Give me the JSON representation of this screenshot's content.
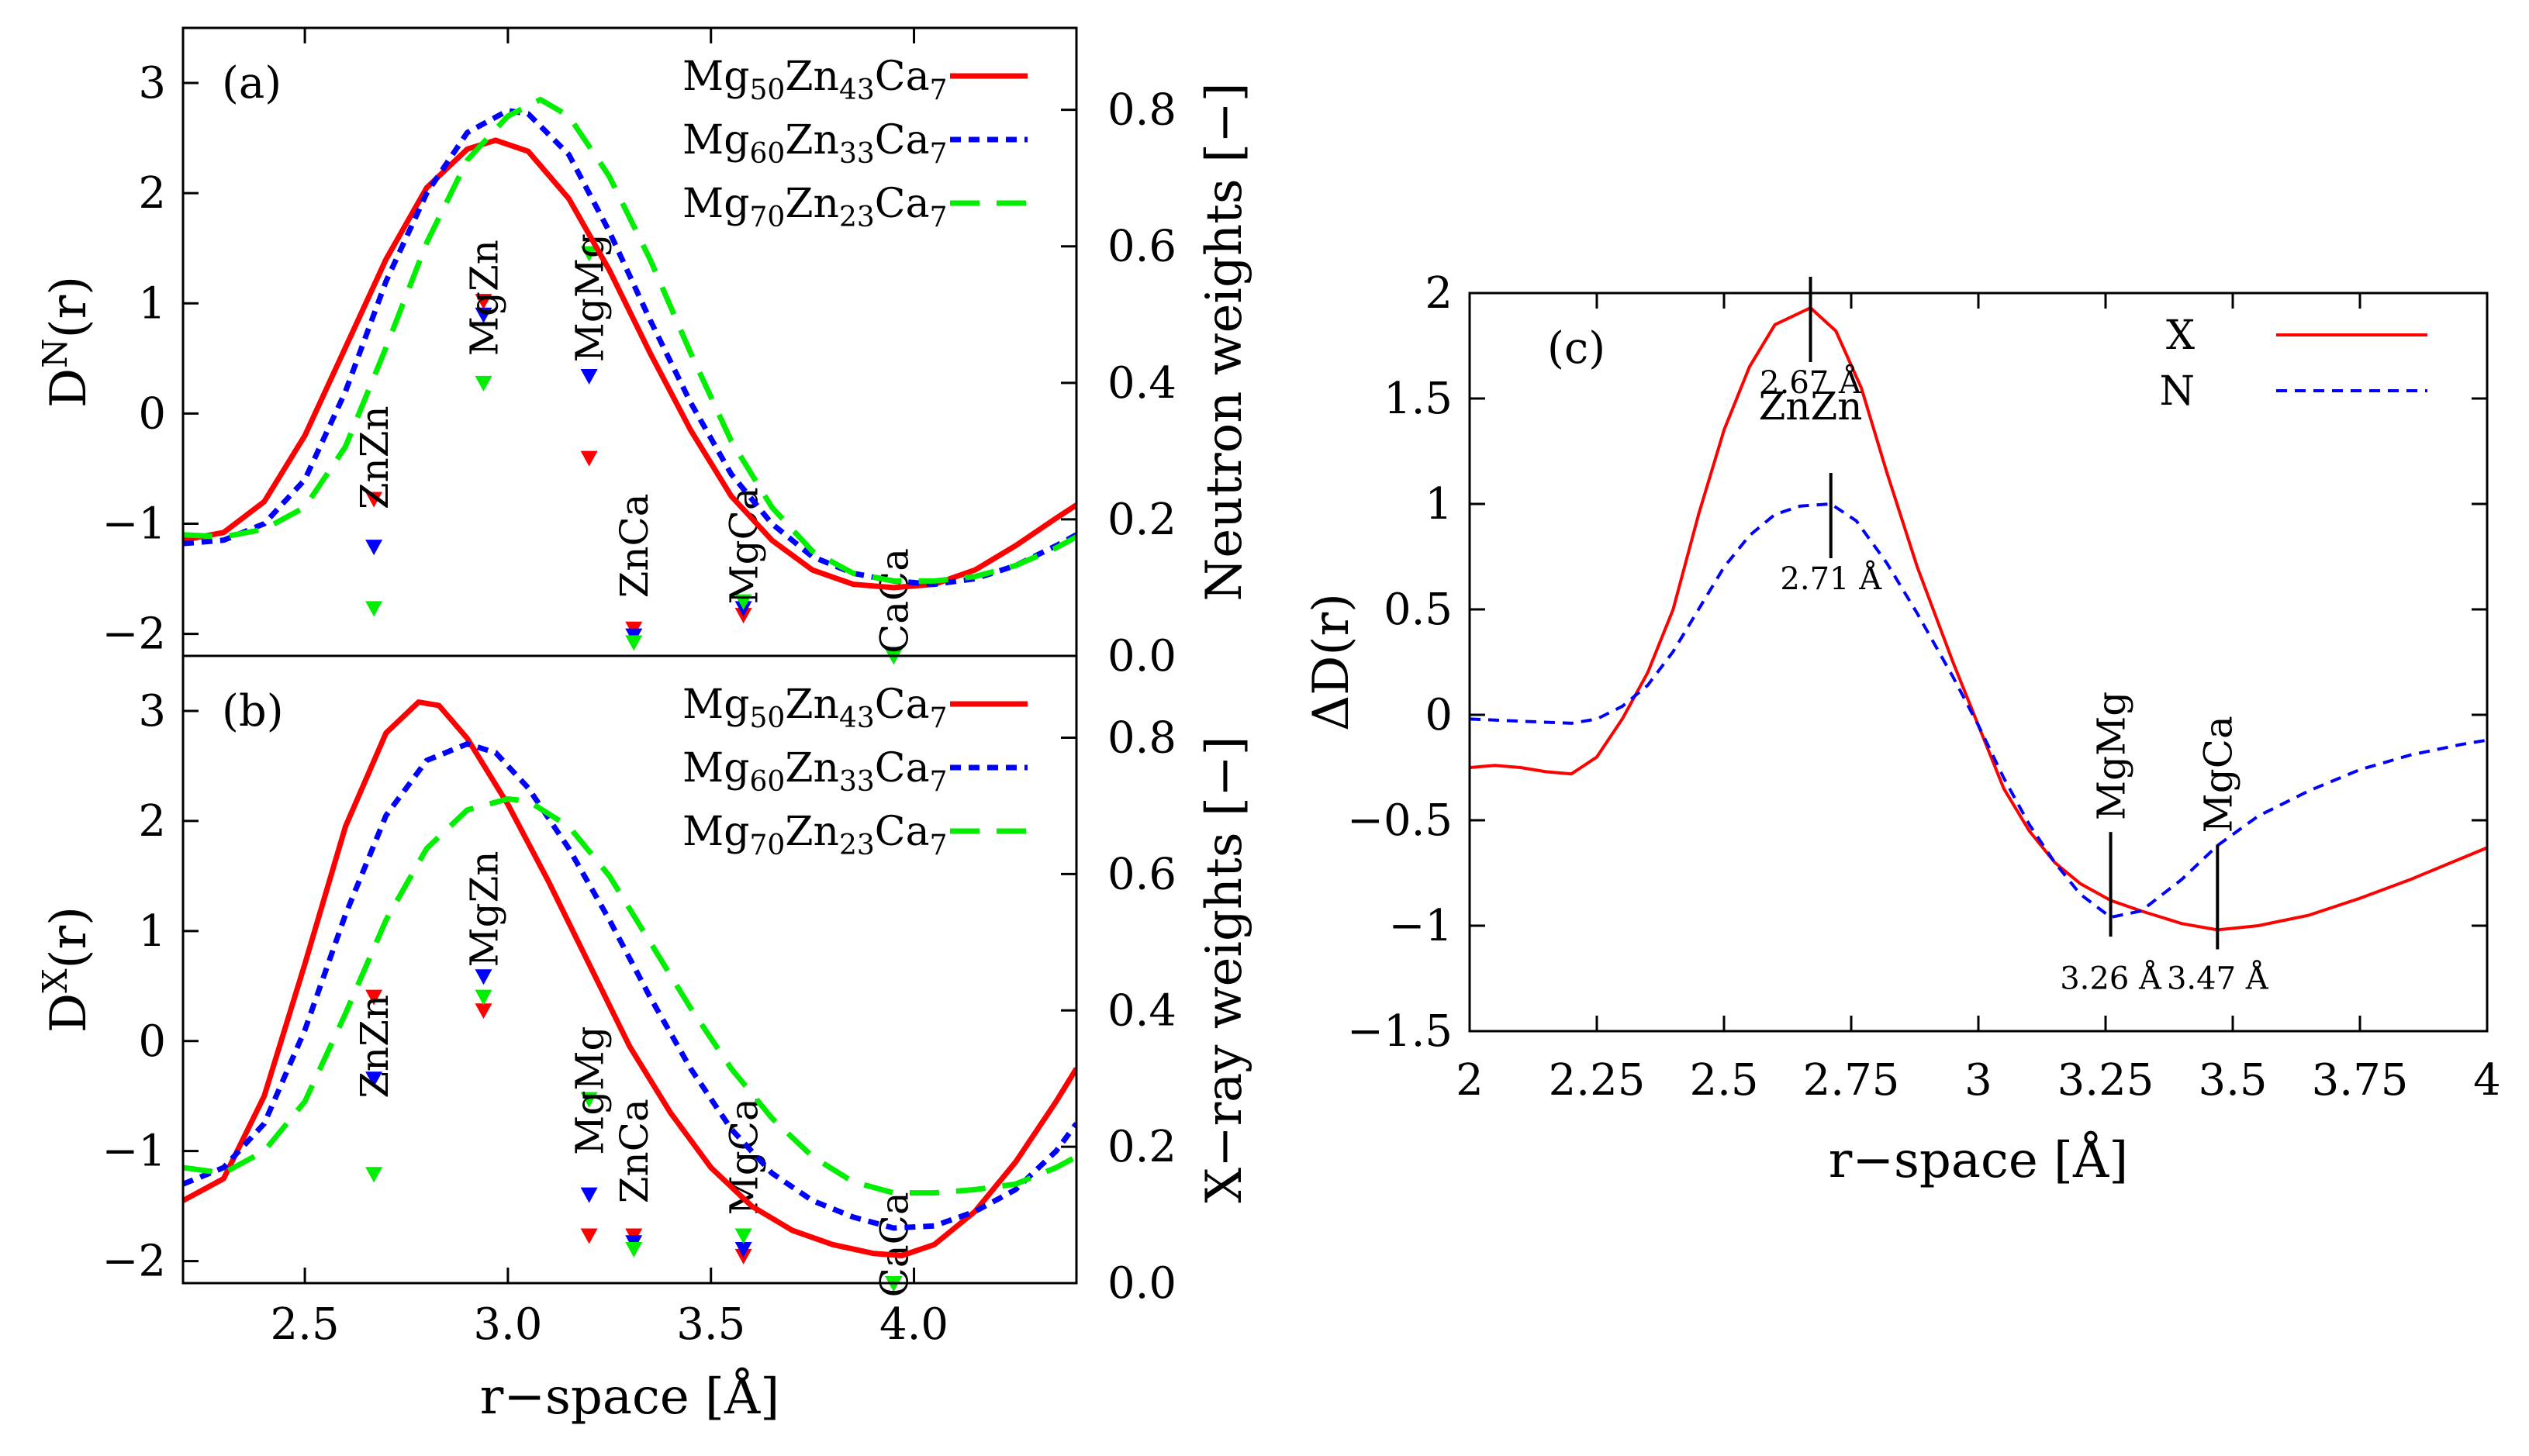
{
  "colors": {
    "red": "#ff0000",
    "blue": "#0000ff",
    "green": "#00ee00",
    "frame": "#000000"
  },
  "chart_data": [
    {
      "id": "a",
      "type": "line",
      "panel_label": "(a)",
      "ylabel": "D^N(r)",
      "ylabel_main": "D",
      "ylabel_sup": "N",
      "ylabel_tail": "(r)",
      "y2label": "Neutron weights [−]",
      "xlim": [
        2.2,
        4.4
      ],
      "ylim": [
        -2.2,
        3.5
      ],
      "y2lim": [
        0.0,
        0.92
      ],
      "yticks": [
        3,
        2,
        1,
        0,
        -1,
        -2
      ],
      "ytick_labels": [
        "3",
        "2",
        "1",
        "0",
        "−1",
        "−2"
      ],
      "y2ticks": [
        0.8,
        0.6,
        0.4,
        0.2,
        0.0
      ],
      "y2tick_labels": [
        "0.8",
        "0.6",
        "0.4",
        "0.2",
        "0.0"
      ],
      "legend": [
        {
          "label": "Mg50Zn43Ca7",
          "parts": [
            [
              "Mg",
              ""
            ],
            [
              "50",
              "sub"
            ],
            [
              "Zn",
              ""
            ],
            [
              "43",
              "sub"
            ],
            [
              "Ca",
              ""
            ],
            [
              "7",
              "sub"
            ]
          ],
          "color": "#ff0000",
          "dash": "solid"
        },
        {
          "label": "Mg60Zn33Ca7",
          "parts": [
            [
              "Mg",
              ""
            ],
            [
              "60",
              "sub"
            ],
            [
              "Zn",
              ""
            ],
            [
              "33",
              "sub"
            ],
            [
              "Ca",
              ""
            ],
            [
              "7",
              "sub"
            ]
          ],
          "color": "#0000ff",
          "dash": "dotted"
        },
        {
          "label": "Mg70Zn23Ca7",
          "parts": [
            [
              "Mg",
              ""
            ],
            [
              "70",
              "sub"
            ],
            [
              "Zn",
              ""
            ],
            [
              "23",
              "sub"
            ],
            [
              "Ca",
              ""
            ],
            [
              "7",
              "sub"
            ]
          ],
          "color": "#00ee00",
          "dash": "dashed"
        }
      ],
      "series": [
        {
          "name": "Mg50Zn43Ca7",
          "color": "#ff0000",
          "dash": "solid",
          "x": [
            2.2,
            2.3,
            2.4,
            2.5,
            2.6,
            2.7,
            2.8,
            2.9,
            2.97,
            3.05,
            3.15,
            3.25,
            3.35,
            3.45,
            3.55,
            3.65,
            3.75,
            3.85,
            3.95,
            4.05,
            4.15,
            4.25,
            4.35,
            4.4
          ],
          "values": [
            -1.15,
            -1.08,
            -0.8,
            -0.2,
            0.6,
            1.4,
            2.05,
            2.4,
            2.48,
            2.38,
            1.95,
            1.3,
            0.55,
            -0.15,
            -0.75,
            -1.15,
            -1.42,
            -1.55,
            -1.58,
            -1.55,
            -1.42,
            -1.2,
            -0.95,
            -0.83
          ]
        },
        {
          "name": "Mg60Zn33Ca7",
          "color": "#0000ff",
          "dash": "dotted",
          "x": [
            2.2,
            2.3,
            2.4,
            2.5,
            2.6,
            2.7,
            2.8,
            2.9,
            3.0,
            3.05,
            3.15,
            3.25,
            3.35,
            3.45,
            3.55,
            3.65,
            3.75,
            3.85,
            3.95,
            4.05,
            4.15,
            4.25,
            4.35,
            4.4
          ],
          "values": [
            -1.18,
            -1.15,
            -1.0,
            -0.6,
            0.2,
            1.2,
            2.0,
            2.55,
            2.75,
            2.72,
            2.35,
            1.65,
            0.85,
            0.1,
            -0.55,
            -1.0,
            -1.3,
            -1.45,
            -1.52,
            -1.55,
            -1.5,
            -1.38,
            -1.2,
            -1.1
          ]
        },
        {
          "name": "Mg70Zn23Ca7",
          "color": "#00ee00",
          "dash": "dashed",
          "x": [
            2.2,
            2.3,
            2.4,
            2.5,
            2.6,
            2.7,
            2.8,
            2.9,
            3.0,
            3.08,
            3.15,
            3.25,
            3.35,
            3.45,
            3.55,
            3.65,
            3.75,
            3.85,
            3.95,
            4.05,
            4.15,
            4.25,
            4.35,
            4.4
          ],
          "values": [
            -1.1,
            -1.12,
            -1.05,
            -0.85,
            -0.3,
            0.6,
            1.55,
            2.3,
            2.7,
            2.85,
            2.7,
            2.15,
            1.4,
            0.55,
            -0.25,
            -0.85,
            -1.25,
            -1.45,
            -1.52,
            -1.52,
            -1.48,
            -1.38,
            -1.22,
            -1.12
          ]
        }
      ],
      "weights": {
        "pairs": [
          "ZnZn",
          "MgZn",
          "MgMg",
          "ZnCa",
          "MgCa",
          "CaCa"
        ],
        "r": [
          2.67,
          2.94,
          3.2,
          3.31,
          3.58,
          3.95
        ],
        "label_y": [
          -0.4,
          1.05,
          1.05,
          -1.2,
          -1.2,
          -1.7
        ],
        "red": [
          0.23,
          0.52,
          0.29,
          0.04,
          0.06,
          0.0
        ],
        "blue": [
          0.16,
          0.5,
          0.41,
          0.03,
          0.07,
          0.0
        ],
        "green": [
          0.07,
          0.4,
          0.59,
          0.02,
          0.08,
          0.0
        ]
      }
    },
    {
      "id": "b",
      "type": "line",
      "panel_label": "(b)",
      "ylabel": "D^X(r)",
      "ylabel_main": "D",
      "ylabel_sup": "X",
      "ylabel_tail": "(r)",
      "y2label": "X−ray weights [−]",
      "xlabel": "r−space [Å]",
      "xlim": [
        2.2,
        4.4
      ],
      "ylim": [
        -2.2,
        3.5
      ],
      "y2lim": [
        0.0,
        0.92
      ],
      "xticks": [
        2.5,
        3.0,
        3.5,
        4.0
      ],
      "xtick_labels": [
        "2.5",
        "3.0",
        "3.5",
        "4.0"
      ],
      "yticks": [
        3,
        2,
        1,
        0,
        -1,
        -2
      ],
      "ytick_labels": [
        "3",
        "2",
        "1",
        "0",
        "−1",
        "−2"
      ],
      "y2ticks": [
        0.8,
        0.6,
        0.4,
        0.2,
        0.0
      ],
      "y2tick_labels": [
        "0.8",
        "0.6",
        "0.4",
        "0.2",
        "0.0"
      ],
      "legend": [
        {
          "label": "Mg50Zn43Ca7",
          "parts": [
            [
              "Mg",
              ""
            ],
            [
              "50",
              "sub"
            ],
            [
              "Zn",
              ""
            ],
            [
              "43",
              "sub"
            ],
            [
              "Ca",
              ""
            ],
            [
              "7",
              "sub"
            ]
          ],
          "color": "#ff0000",
          "dash": "solid"
        },
        {
          "label": "Mg60Zn33Ca7",
          "parts": [
            [
              "Mg",
              ""
            ],
            [
              "60",
              "sub"
            ],
            [
              "Zn",
              ""
            ],
            [
              "33",
              "sub"
            ],
            [
              "Ca",
              ""
            ],
            [
              "7",
              "sub"
            ]
          ],
          "color": "#0000ff",
          "dash": "dotted"
        },
        {
          "label": "Mg70Zn23Ca7",
          "parts": [
            [
              "Mg",
              ""
            ],
            [
              "70",
              "sub"
            ],
            [
              "Zn",
              ""
            ],
            [
              "23",
              "sub"
            ],
            [
              "Ca",
              ""
            ],
            [
              "7",
              "sub"
            ]
          ],
          "color": "#00ee00",
          "dash": "dashed"
        }
      ],
      "series": [
        {
          "name": "Mg50Zn43Ca7",
          "color": "#ff0000",
          "dash": "solid",
          "x": [
            2.2,
            2.3,
            2.4,
            2.5,
            2.6,
            2.7,
            2.78,
            2.83,
            2.9,
            3.0,
            3.1,
            3.2,
            3.3,
            3.4,
            3.5,
            3.6,
            3.7,
            3.8,
            3.9,
            3.97,
            4.05,
            4.15,
            4.25,
            4.35,
            4.4
          ],
          "values": [
            -1.45,
            -1.25,
            -0.5,
            0.7,
            1.95,
            2.8,
            3.08,
            3.05,
            2.75,
            2.15,
            1.45,
            0.7,
            -0.05,
            -0.65,
            -1.15,
            -1.5,
            -1.72,
            -1.85,
            -1.93,
            -1.95,
            -1.85,
            -1.55,
            -1.1,
            -0.55,
            -0.25
          ]
        },
        {
          "name": "Mg60Zn33Ca7",
          "color": "#0000ff",
          "dash": "dotted",
          "x": [
            2.2,
            2.3,
            2.4,
            2.5,
            2.6,
            2.7,
            2.8,
            2.9,
            2.97,
            3.05,
            3.15,
            3.25,
            3.35,
            3.45,
            3.55,
            3.65,
            3.75,
            3.85,
            3.95,
            4.05,
            4.15,
            4.25,
            4.35,
            4.4
          ],
          "values": [
            -1.3,
            -1.15,
            -0.75,
            0.1,
            1.15,
            2.05,
            2.55,
            2.7,
            2.62,
            2.3,
            1.75,
            1.1,
            0.4,
            -0.25,
            -0.8,
            -1.2,
            -1.45,
            -1.6,
            -1.7,
            -1.68,
            -1.55,
            -1.35,
            -1.0,
            -0.75
          ]
        },
        {
          "name": "Mg70Zn23Ca7",
          "color": "#00ee00",
          "dash": "dashed",
          "x": [
            2.2,
            2.3,
            2.4,
            2.5,
            2.6,
            2.7,
            2.8,
            2.9,
            3.0,
            3.05,
            3.15,
            3.25,
            3.35,
            3.45,
            3.55,
            3.65,
            3.75,
            3.85,
            3.95,
            4.05,
            4.15,
            4.25,
            4.35,
            4.4
          ],
          "values": [
            -1.15,
            -1.2,
            -1.0,
            -0.55,
            0.25,
            1.1,
            1.75,
            2.1,
            2.2,
            2.18,
            1.95,
            1.5,
            0.9,
            0.3,
            -0.25,
            -0.7,
            -1.05,
            -1.28,
            -1.38,
            -1.38,
            -1.35,
            -1.3,
            -1.15,
            -1.05
          ]
        }
      ],
      "weights": {
        "pairs": [
          "ZnZn",
          "MgZn",
          "MgMg",
          "ZnCa",
          "MgCa",
          "CaCa"
        ],
        "r": [
          2.67,
          2.94,
          3.2,
          3.31,
          3.58,
          3.95
        ],
        "label_y": [
          -0.05,
          1.2,
          -0.45,
          -1.0,
          -1.05,
          -1.85
        ],
        "red": [
          0.42,
          0.4,
          0.07,
          0.07,
          0.04,
          0.0
        ],
        "blue": [
          0.3,
          0.45,
          0.13,
          0.06,
          0.05,
          0.0
        ],
        "green": [
          0.16,
          0.42,
          0.27,
          0.05,
          0.07,
          0.0
        ]
      }
    },
    {
      "id": "c",
      "type": "line",
      "panel_label": "(c)",
      "ylabel": "ΔD(r)",
      "xlabel": "r−space [Å]",
      "xlim": [
        2.0,
        4.0
      ],
      "ylim": [
        -1.5,
        2.0
      ],
      "xticks": [
        2.0,
        2.25,
        2.5,
        2.75,
        3.0,
        3.25,
        3.5,
        3.75,
        4.0
      ],
      "xtick_labels": [
        "2",
        "2.25",
        "2.5",
        "2.75",
        "3",
        "3.25",
        "3.5",
        "3.75",
        "4"
      ],
      "yticks": [
        2,
        1.5,
        1,
        0.5,
        0,
        -0.5,
        -1,
        -1.5
      ],
      "ytick_labels": [
        "2",
        "1.5",
        "1",
        "0.5",
        "0",
        "−0.5",
        "−1",
        "−1.5"
      ],
      "legend": [
        {
          "label": "X",
          "color": "#ff0000",
          "dash": "solid"
        },
        {
          "label": "N",
          "color": "#0000ff",
          "dash": "dotted"
        }
      ],
      "series": [
        {
          "name": "X",
          "color": "#ff0000",
          "dash": "solid",
          "x": [
            2.0,
            2.05,
            2.1,
            2.15,
            2.2,
            2.25,
            2.3,
            2.35,
            2.4,
            2.45,
            2.5,
            2.55,
            2.6,
            2.67,
            2.72,
            2.77,
            2.82,
            2.88,
            2.95,
            3.0,
            3.05,
            3.1,
            3.15,
            3.2,
            3.26,
            3.32,
            3.4,
            3.47,
            3.55,
            3.65,
            3.75,
            3.85,
            3.95,
            4.0
          ],
          "values": [
            -0.25,
            -0.24,
            -0.25,
            -0.27,
            -0.28,
            -0.2,
            -0.02,
            0.2,
            0.5,
            0.95,
            1.35,
            1.65,
            1.85,
            1.93,
            1.82,
            1.55,
            1.15,
            0.7,
            0.25,
            -0.05,
            -0.35,
            -0.55,
            -0.7,
            -0.8,
            -0.88,
            -0.93,
            -0.99,
            -1.02,
            -1.0,
            -0.95,
            -0.87,
            -0.78,
            -0.68,
            -0.63
          ]
        },
        {
          "name": "N",
          "color": "#0000ff",
          "dash": "dotted",
          "x": [
            2.0,
            2.1,
            2.2,
            2.25,
            2.3,
            2.35,
            2.4,
            2.45,
            2.5,
            2.55,
            2.6,
            2.65,
            2.71,
            2.76,
            2.82,
            2.88,
            2.95,
            3.0,
            3.05,
            3.1,
            3.15,
            3.2,
            3.26,
            3.32,
            3.4,
            3.47,
            3.55,
            3.65,
            3.75,
            3.85,
            3.95,
            4.0
          ],
          "values": [
            -0.02,
            -0.03,
            -0.04,
            -0.02,
            0.04,
            0.14,
            0.3,
            0.5,
            0.7,
            0.85,
            0.95,
            0.99,
            1.0,
            0.92,
            0.72,
            0.48,
            0.18,
            -0.05,
            -0.3,
            -0.52,
            -0.7,
            -0.85,
            -0.96,
            -0.93,
            -0.78,
            -0.62,
            -0.48,
            -0.36,
            -0.26,
            -0.19,
            -0.14,
            -0.12
          ]
        }
      ],
      "annotations": [
        {
          "label": "2.67 Å",
          "x": 2.67,
          "y": 1.93,
          "series": "X",
          "pos": "below"
        },
        {
          "label": "ZnZn",
          "x": 2.67,
          "y": 1.4,
          "pos": "text"
        },
        {
          "label": "2.71 Å",
          "x": 2.71,
          "y": 1.0,
          "series": "N",
          "pos": "below"
        },
        {
          "label": "MgMg",
          "x": 3.26,
          "y": -0.96,
          "series": "N",
          "pos": "above"
        },
        {
          "label": "3.26 Å",
          "x": 3.26,
          "y": -1.3,
          "pos": "text"
        },
        {
          "label": "MgCa",
          "x": 3.47,
          "y": -1.02,
          "series": "X",
          "pos": "above"
        },
        {
          "label": "3.47 Å",
          "x": 3.47,
          "y": -1.3,
          "pos": "text"
        }
      ]
    }
  ]
}
